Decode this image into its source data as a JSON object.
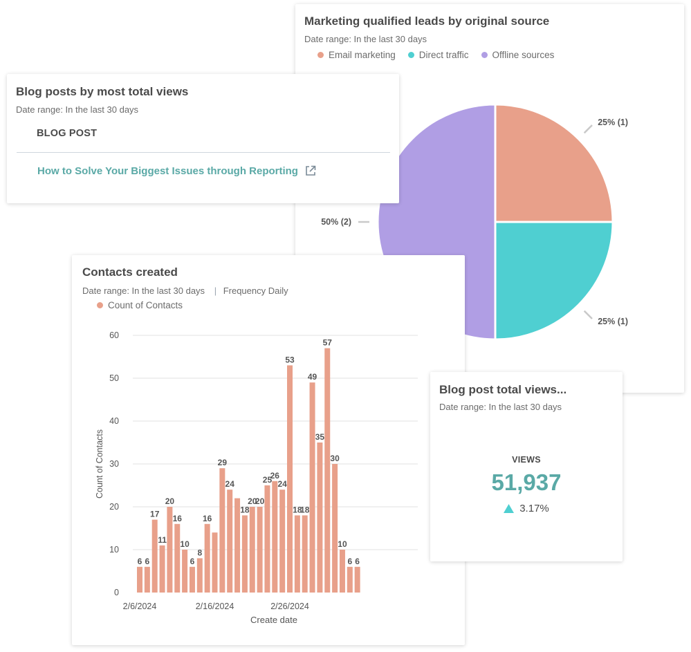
{
  "mql_card": {
    "title": "Marketing qualified leads by original source",
    "date_range": "Date range: In the last 30 days",
    "legend": [
      {
        "label": "Email marketing",
        "color": "#e8a08a"
      },
      {
        "label": "Direct traffic",
        "color": "#4fcfd1"
      },
      {
        "label": "Offline sources",
        "color": "#b09ee4"
      }
    ]
  },
  "blog_card": {
    "title": "Blog posts by most total views",
    "date_range": "Date range: In the last 30 days",
    "column_header": "BLOG POST",
    "rows": [
      {
        "title": "How to Solve Your Biggest Issues through Reporting",
        "icon": "external-link-icon"
      }
    ]
  },
  "contacts_card": {
    "title": "Contacts created",
    "date_range": "Date range: In the last 30 days",
    "frequency": "Frequency Daily",
    "legend_label": "Count of Contacts",
    "legend_color": "#e8a08a"
  },
  "views_card": {
    "title": "Blog post total views...",
    "date_range": "Date range: In the last 30 days",
    "metric_label": "VIEWS",
    "value": "51,937",
    "change": "3.17%",
    "change_direction": "up",
    "accent_color": "#5aa9a6"
  },
  "chart_data": [
    {
      "type": "pie",
      "title": "Marketing qualified leads by original source",
      "slices": [
        {
          "name": "Email marketing",
          "value": 1,
          "percent": 25,
          "label": "25% (1)",
          "color": "#e8a08a"
        },
        {
          "name": "Direct traffic",
          "value": 1,
          "percent": 25,
          "label": "25% (1)",
          "color": "#4fcfd1"
        },
        {
          "name": "Offline sources",
          "value": 2,
          "percent": 50,
          "label": "50% (2)",
          "color": "#b09ee4"
        }
      ]
    },
    {
      "type": "bar",
      "title": "Contacts created",
      "xlabel": "Create date",
      "ylabel": "Count of Contacts",
      "ylim": [
        0,
        60
      ],
      "yticks": [
        0,
        10,
        20,
        30,
        40,
        50,
        60
      ],
      "x_tick_labels": [
        {
          "label": "2/6/2024",
          "index": 0
        },
        {
          "label": "2/16/2024",
          "index": 10
        },
        {
          "label": "2/26/2024",
          "index": 20
        }
      ],
      "grid": true,
      "series": [
        {
          "name": "Count of Contacts",
          "color": "#e8a08a",
          "values": [
            6,
            6,
            17,
            11,
            20,
            16,
            10,
            6,
            8,
            16,
            14,
            29,
            24,
            22,
            18,
            20,
            20,
            25,
            26,
            24,
            53,
            18,
            18,
            49,
            35,
            57,
            30,
            10,
            6,
            6
          ],
          "labeled": [
            true,
            true,
            true,
            true,
            true,
            true,
            true,
            true,
            true,
            true,
            false,
            true,
            true,
            false,
            true,
            true,
            true,
            true,
            true,
            true,
            true,
            true,
            true,
            true,
            true,
            true,
            true,
            true,
            true,
            true
          ]
        }
      ]
    }
  ]
}
